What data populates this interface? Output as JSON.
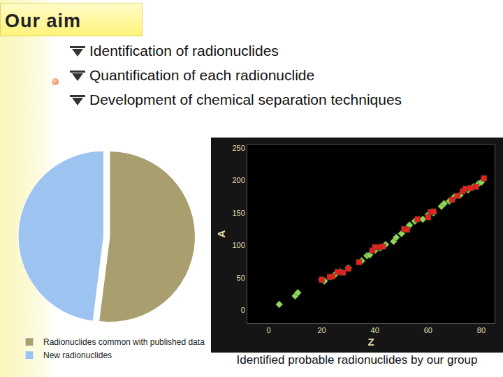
{
  "slide": {
    "title": "Our aim",
    "bullets": [
      "Identification of radionuclides",
      "Quantification of each radionuclide",
      "Development of chemical separation techniques"
    ],
    "caption": "Identified probable radionuclides by our group"
  },
  "chart_data": [
    {
      "type": "pie",
      "categories": [
        "Radionuclides common with published data",
        "New radionuclides"
      ],
      "values": [
        52,
        48
      ],
      "colors": [
        "#a89e6e",
        "#9dc3f0"
      ],
      "legend": "bottom"
    },
    {
      "type": "scatter",
      "x_label": "Z",
      "y_label": "A",
      "xlim": [
        -8,
        85
      ],
      "xticks": [
        0,
        20,
        40,
        60,
        80
      ],
      "ylim": [
        -20,
        255
      ],
      "yticks": [
        0,
        50,
        100,
        150,
        200,
        250
      ],
      "grid": false,
      "series": [
        {
          "color": "#8fd65a",
          "marker": "diamond",
          "x": [
            4,
            10,
            11,
            20,
            21,
            25,
            27,
            30,
            35,
            37,
            38,
            40,
            42,
            44,
            47,
            48,
            50,
            52,
            53,
            55,
            58,
            60,
            62,
            65,
            66,
            68,
            70,
            72,
            75,
            77,
            79,
            80
          ],
          "values": [
            9,
            22,
            27,
            47,
            45,
            55,
            59,
            65,
            76,
            84,
            85,
            92,
            96,
            101,
            106,
            112,
            118,
            125,
            131,
            137,
            140,
            147,
            150,
            160,
            164,
            168,
            175,
            177,
            185,
            190,
            195,
            197
          ]
        },
        {
          "color": "#e82020",
          "marker": "square",
          "x": [
            20,
            23,
            24,
            26,
            28,
            30,
            34,
            39,
            40,
            42,
            43,
            51,
            52,
            56,
            60,
            61,
            62,
            69,
            71,
            73,
            74,
            76,
            78,
            81
          ],
          "values": [
            47,
            51,
            52,
            59,
            58,
            64,
            74,
            92,
            97,
            97,
            98,
            125,
            124,
            140,
            143,
            151,
            152,
            170,
            176,
            183,
            187,
            188,
            190,
            203
          ]
        }
      ]
    }
  ]
}
